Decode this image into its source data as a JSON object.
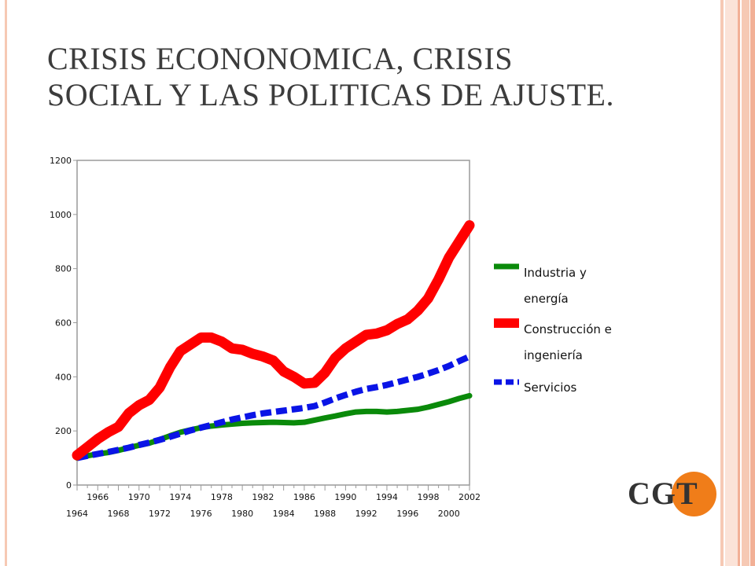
{
  "slide": {
    "title_line1": "CRISIS ECONONOMICA, CRISIS",
    "title_line2": "SOCIAL Y LAS POLITICAS DE AJUSTE.",
    "logo_text": "CGT",
    "logo_color": "#f07d19",
    "border_colors": [
      "#f6c9b4",
      "#f2b096",
      "#fbe3d8"
    ]
  },
  "chart_data": {
    "type": "line",
    "ylim": [
      0,
      1200
    ],
    "xlim": [
      1964,
      2002
    ],
    "yticks": [
      "0",
      "200",
      "400",
      "600",
      "800",
      "1000",
      "1200"
    ],
    "xticks_upper": [
      "1966",
      "1970",
      "1974",
      "1978",
      "1982",
      "1986",
      "1990",
      "1994",
      "1998",
      "2002"
    ],
    "xticks_lower": [
      "1964",
      "1968",
      "1972",
      "1976",
      "1980",
      "1984",
      "1988",
      "1992",
      "1996",
      "2000"
    ],
    "grid": false,
    "legend_position": "right",
    "x": [
      1964,
      1965,
      1966,
      1967,
      1968,
      1969,
      1970,
      1971,
      1972,
      1973,
      1974,
      1975,
      1976,
      1977,
      1978,
      1979,
      1980,
      1981,
      1982,
      1983,
      1984,
      1985,
      1986,
      1987,
      1988,
      1989,
      1990,
      1991,
      1992,
      1993,
      1994,
      1995,
      1996,
      1997,
      1998,
      1999,
      2000,
      2001,
      2002
    ],
    "series": [
      {
        "name": "Industria y energía",
        "color": "#0a8a0a",
        "dash": "solid",
        "values": [
          100,
          108,
          115,
          120,
          128,
          138,
          147,
          155,
          168,
          182,
          195,
          204,
          212,
          218,
          222,
          225,
          228,
          230,
          231,
          232,
          231,
          230,
          232,
          240,
          248,
          255,
          263,
          270,
          272,
          272,
          270,
          272,
          276,
          280,
          288,
          298,
          308,
          320,
          330
        ]
      },
      {
        "name": "Construcción e ingeniería",
        "color": "#ff0000",
        "dash": "solid",
        "values": [
          110,
          140,
          170,
          195,
          215,
          265,
          295,
          315,
          360,
          435,
          495,
          520,
          545,
          545,
          530,
          505,
          500,
          485,
          475,
          460,
          420,
          400,
          375,
          378,
          415,
          470,
          505,
          530,
          555,
          560,
          572,
          595,
          612,
          645,
          690,
          760,
          840,
          900,
          960
        ]
      },
      {
        "name": "Servicios",
        "color": "#0a14e6",
        "dash": "dashed",
        "values": [
          100,
          108,
          115,
          122,
          130,
          138,
          148,
          157,
          167,
          178,
          190,
          202,
          212,
          222,
          232,
          242,
          250,
          258,
          265,
          270,
          275,
          280,
          285,
          292,
          305,
          320,
          333,
          345,
          355,
          362,
          370,
          380,
          390,
          400,
          412,
          425,
          440,
          458,
          475
        ]
      }
    ]
  }
}
